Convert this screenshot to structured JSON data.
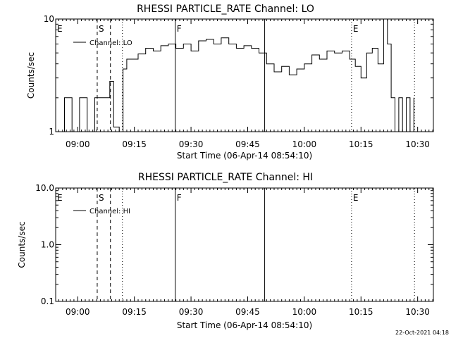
{
  "chart_data": [
    {
      "type": "line",
      "title": "RHESSI PARTICLE_RATE Channel: LO",
      "xlabel": "Start Time (06-Apr-14 08:54:10)",
      "ylabel": "Counts/sec",
      "yscale": "log",
      "ylim": [
        1,
        10
      ],
      "xlim": [
        "08:54:10",
        "10:34:10"
      ],
      "grid": false,
      "legend_position": "top-left",
      "x_ticks": [
        "09:00",
        "09:15",
        "09:30",
        "09:45",
        "10:00",
        "10:15",
        "10:30"
      ],
      "y_ticks": [
        "1",
        "10"
      ],
      "series": [
        {
          "name": "Channel: LO",
          "x": [
            "08:54:30",
            "08:56:30",
            "08:58:30",
            "09:00:30",
            "09:02:30",
            "09:04:30",
            "09:06:00",
            "09:07:30",
            "09:08:30",
            "09:09:30",
            "09:11:00",
            "09:12:00",
            "09:13:00",
            "09:14:00",
            "09:16:00",
            "09:18:00",
            "09:20:00",
            "09:22:00",
            "09:24:00",
            "09:26:00",
            "09:28:00",
            "09:30:00",
            "09:32:00",
            "09:34:00",
            "09:36:00",
            "09:38:00",
            "09:40:00",
            "09:42:00",
            "09:44:00",
            "09:46:00",
            "09:48:00",
            "09:50:00",
            "09:52:00",
            "09:54:00",
            "09:56:00",
            "09:58:00",
            "10:00:00",
            "10:02:00",
            "10:04:00",
            "10:06:00",
            "10:08:00",
            "10:10:00",
            "10:12:00",
            "10:13:30",
            "10:15:00",
            "10:16:30",
            "10:18:00",
            "10:19:30",
            "10:21:00",
            "10:22:00",
            "10:23:00",
            "10:24:00",
            "10:25:00",
            "10:26:00",
            "10:27:00",
            "10:28:00",
            "10:29:00"
          ],
          "y": [
            1.0,
            2.0,
            1.0,
            2.0,
            1.0,
            2.0,
            2.0,
            2.0,
            2.8,
            1.1,
            1.0,
            3.6,
            4.4,
            4.4,
            4.9,
            5.5,
            5.2,
            5.8,
            6.0,
            5.5,
            6.0,
            5.2,
            6.4,
            6.6,
            6.0,
            6.8,
            6.0,
            5.5,
            5.8,
            5.5,
            5.0,
            4.0,
            3.4,
            3.8,
            3.2,
            3.6,
            4.0,
            4.8,
            4.4,
            5.2,
            5.0,
            5.2,
            4.4,
            3.8,
            3.0,
            5.0,
            5.5,
            4.0,
            10.0,
            6.0,
            2.0,
            1.0,
            2.0,
            1.0,
            2.0,
            1.0,
            2.0
          ]
        }
      ],
      "annotations": [
        {
          "label": "E",
          "x": "08:54:10",
          "style": "none"
        },
        {
          "label": "S",
          "x": "09:05:10",
          "style": "dashed"
        },
        {
          "label": "",
          "x": "09:08:40",
          "style": "dashed"
        },
        {
          "label": "",
          "x": "09:11:50",
          "style": "dotted"
        },
        {
          "label": "F",
          "x": "09:25:50",
          "style": "solid"
        },
        {
          "label": "",
          "x": "09:49:30",
          "style": "solid"
        },
        {
          "label": "E",
          "x": "10:12:30",
          "style": "dotted"
        },
        {
          "label": "",
          "x": "10:29:10",
          "style": "dotted"
        }
      ]
    },
    {
      "type": "line",
      "title": "RHESSI PARTICLE_RATE Channel: HI",
      "xlabel": "Start Time (06-Apr-14 08:54:10)",
      "ylabel": "Counts/sec",
      "yscale": "log",
      "ylim": [
        0.1,
        10
      ],
      "xlim": [
        "08:54:10",
        "10:34:10"
      ],
      "grid": false,
      "legend_position": "top-left",
      "x_ticks": [
        "09:00",
        "09:15",
        "09:30",
        "09:45",
        "10:00",
        "10:15",
        "10:30"
      ],
      "y_ticks": [
        "0.1",
        "1.0",
        "10.0"
      ],
      "series": [
        {
          "name": "Channel: HI",
          "x": [],
          "y": []
        }
      ],
      "annotations": [
        {
          "label": "E",
          "x": "08:54:10",
          "style": "none"
        },
        {
          "label": "S",
          "x": "09:05:10",
          "style": "dashed"
        },
        {
          "label": "",
          "x": "09:08:40",
          "style": "dashed"
        },
        {
          "label": "",
          "x": "09:11:50",
          "style": "dotted"
        },
        {
          "label": "F",
          "x": "09:25:50",
          "style": "solid"
        },
        {
          "label": "",
          "x": "09:49:30",
          "style": "solid"
        },
        {
          "label": "E",
          "x": "10:12:30",
          "style": "dotted"
        },
        {
          "label": "",
          "x": "10:29:10",
          "style": "dotted"
        }
      ]
    }
  ],
  "footer": {
    "date_stamp": "22-Oct-2021 04:18"
  }
}
